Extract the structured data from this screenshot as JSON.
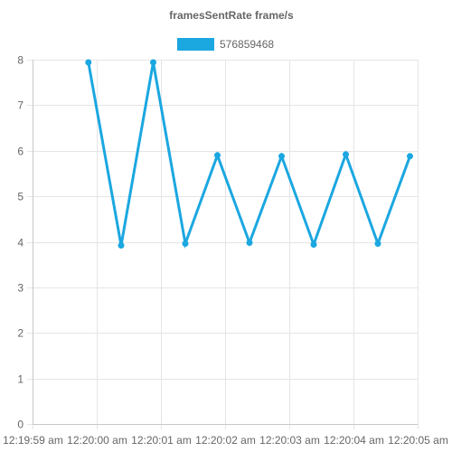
{
  "chart_data": {
    "type": "line",
    "title": "framesSentRate frame/s",
    "xlabel": "",
    "ylabel": "",
    "x_tick_labels": [
      "12:19:59 am",
      "12:20:00 am",
      "12:20:01 am",
      "12:20:02 am",
      "12:20:03 am",
      "12:20:04 am",
      "12:20:05 am"
    ],
    "xlim": [
      "12:19:59 am",
      "12:20:05 am"
    ],
    "ylim": [
      0,
      8
    ],
    "y_ticks": [
      0,
      1,
      2,
      3,
      4,
      5,
      6,
      7,
      8
    ],
    "grid": true,
    "legend_position": "top",
    "series": [
      {
        "name": "576859468",
        "color": "#1ba7e0",
        "x": [
          "12:19:59.87 am",
          "12:20:00.38 am",
          "12:20:00.88 am",
          "12:20:01.38 am",
          "12:20:01.88 am",
          "12:20:02.38 am",
          "12:20:02.88 am",
          "12:20:03.38 am",
          "12:20:03.88 am",
          "12:20:04.38 am",
          "12:20:04.88 am"
        ],
        "values": [
          7.94,
          3.92,
          7.94,
          3.96,
          5.9,
          3.98,
          5.88,
          3.94,
          5.92,
          3.96,
          5.88
        ]
      }
    ]
  }
}
